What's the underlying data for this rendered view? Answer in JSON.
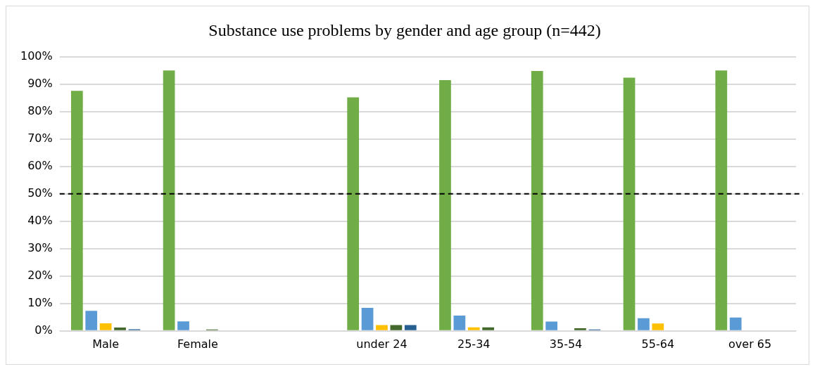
{
  "chart_data": {
    "type": "bar",
    "title": "Substance use problems by gender and age group (n=442)",
    "categories": [
      "Male",
      "Female",
      null,
      "under 24",
      "25-34",
      "35-54",
      "55-64",
      "over 65"
    ],
    "series": [
      {
        "color": "#70ad47",
        "values": [
          87.6,
          95.0,
          null,
          85.2,
          91.5,
          94.8,
          92.4,
          95.0
        ]
      },
      {
        "color": "#5b9bd5",
        "values": [
          7.3,
          3.5,
          null,
          8.4,
          5.6,
          3.4,
          4.6,
          4.9
        ]
      },
      {
        "color": "#ffc000",
        "values": [
          2.8,
          null,
          null,
          2.1,
          1.3,
          null,
          2.7,
          null
        ]
      },
      {
        "color": "#43682b",
        "values": [
          1.2,
          0.5,
          null,
          2.1,
          1.3,
          1.0,
          null,
          null
        ]
      },
      {
        "color": "#255e91",
        "values": [
          0.6,
          null,
          null,
          2.1,
          null,
          0.5,
          null,
          null
        ]
      }
    ],
    "ylim": [
      0,
      100
    ],
    "yticks": [
      {
        "value": 0,
        "label": "0%"
      },
      {
        "value": 10,
        "label": "10%"
      },
      {
        "value": 20,
        "label": "20%"
      },
      {
        "value": 30,
        "label": "30%"
      },
      {
        "value": 40,
        "label": "40%"
      },
      {
        "value": 50,
        "label": "50%"
      },
      {
        "value": 60,
        "label": "60%"
      },
      {
        "value": 70,
        "label": "70%"
      },
      {
        "value": 80,
        "label": "80%"
      },
      {
        "value": 90,
        "label": "90%"
      },
      {
        "value": 100,
        "label": "100%"
      }
    ],
    "grid": "y",
    "legend": false,
    "ref_lines": [
      {
        "axis": "y",
        "value": 50,
        "color": "#000000",
        "line_style": "dashed"
      }
    ]
  }
}
